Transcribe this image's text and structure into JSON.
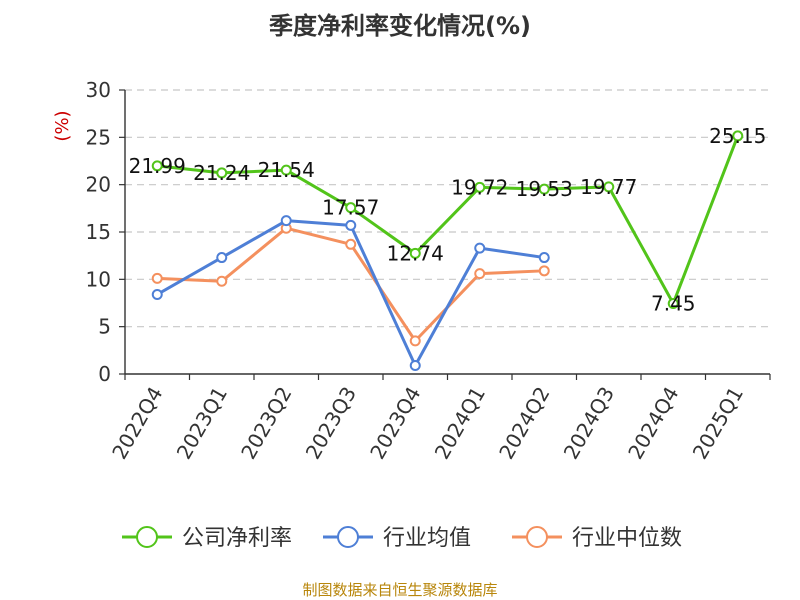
{
  "chart_data": {
    "type": "line",
    "title": "季度净利率变化情况(%)",
    "y_unit_label": "(%)",
    "categories": [
      "2022Q4",
      "2023Q1",
      "2023Q2",
      "2023Q3",
      "2023Q4",
      "2024Q1",
      "2024Q2",
      "2024Q3",
      "2024Q4",
      "2025Q1"
    ],
    "ylim": [
      0,
      30
    ],
    "yticks": [
      0,
      5,
      10,
      15,
      20,
      25,
      30
    ],
    "grid": true,
    "legend_position": "bottom",
    "series": [
      {
        "name": "公司净利率",
        "color": "#52c41a",
        "show_labels": true,
        "values": [
          21.99,
          21.24,
          21.54,
          17.57,
          12.74,
          19.72,
          19.53,
          19.77,
          7.45,
          25.15
        ]
      },
      {
        "name": "行业均值",
        "color": "#4e7fd6",
        "show_labels": false,
        "values": [
          8.4,
          12.3,
          16.2,
          15.7,
          0.9,
          13.3,
          12.3,
          null,
          null,
          null
        ]
      },
      {
        "name": "行业中位数",
        "color": "#f4905e",
        "show_labels": false,
        "values": [
          10.1,
          9.8,
          15.4,
          13.7,
          3.5,
          10.6,
          10.9,
          null,
          null,
          null
        ]
      }
    ]
  },
  "source": "制图数据来自恒生聚源数据库"
}
